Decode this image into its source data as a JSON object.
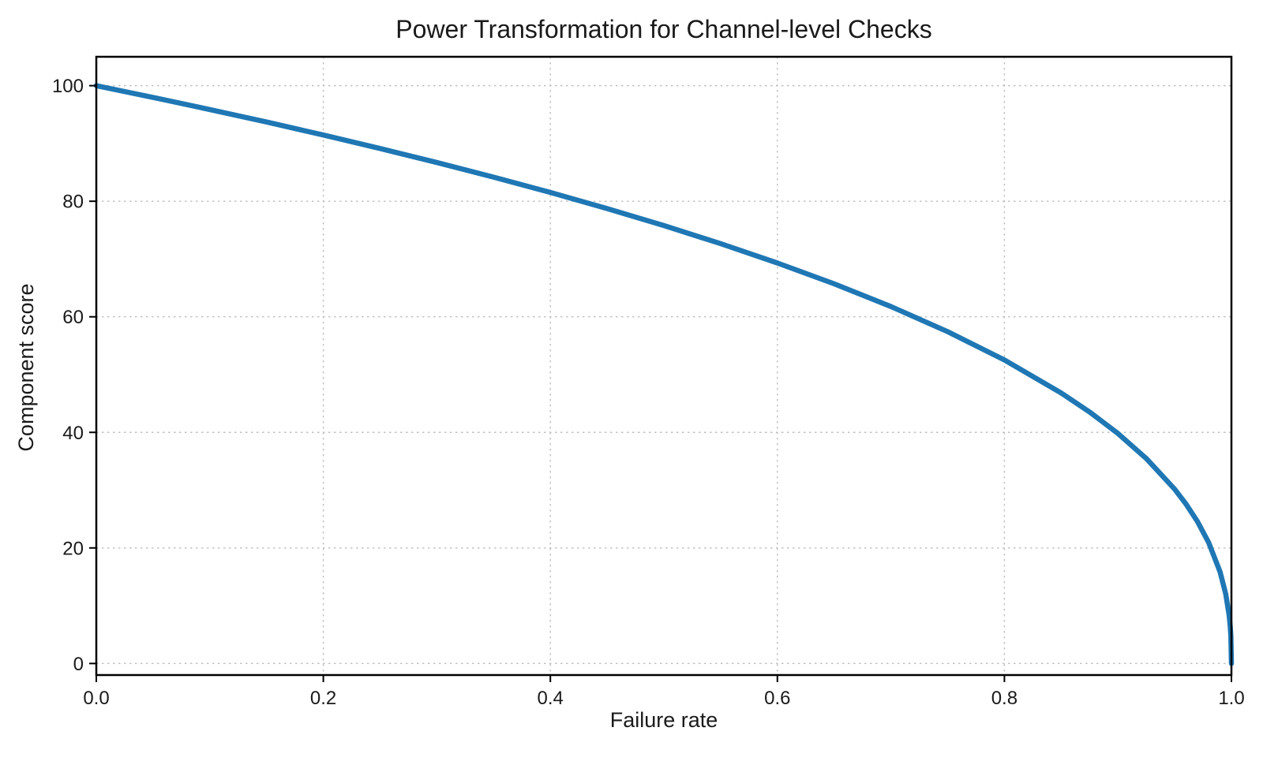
{
  "page": {
    "background": "#ffffff"
  },
  "chart_data": {
    "type": "line",
    "title": "Power Transformation for Channel-level Checks",
    "xlabel": "Failure rate",
    "ylabel": "Component score",
    "xlim": [
      0.0,
      1.0
    ],
    "ylim": [
      0,
      100
    ],
    "display_xlim": [
      0.0,
      1.0
    ],
    "display_ylim": [
      -2,
      105
    ],
    "x_ticks": [
      0.0,
      0.2,
      0.4,
      0.6,
      0.8,
      1.0
    ],
    "x_tick_labels": [
      "0.0",
      "0.2",
      "0.4",
      "0.6",
      "0.8",
      "1.0"
    ],
    "y_ticks": [
      0,
      20,
      40,
      60,
      80,
      100
    ],
    "y_tick_labels": [
      "0",
      "20",
      "40",
      "60",
      "80",
      "100"
    ],
    "grid": "dotted",
    "grid_color": "#bfbfbf",
    "axis_color": "#000000",
    "text_color": "#1a1a1a",
    "legend": "none",
    "series": [
      {
        "name": "component-score-curve",
        "color": "#1f77b4",
        "line_width": 6.5,
        "formula": "y = 100 * (1 - x)^0.4",
        "points": [
          [
            0.0,
            100.0
          ],
          [
            0.05,
            97.97
          ],
          [
            0.1,
            95.87
          ],
          [
            0.15,
            93.71
          ],
          [
            0.2,
            91.46
          ],
          [
            0.25,
            89.13
          ],
          [
            0.3,
            86.7
          ],
          [
            0.35,
            84.17
          ],
          [
            0.4,
            81.52
          ],
          [
            0.45,
            78.73
          ],
          [
            0.5,
            75.79
          ],
          [
            0.55,
            72.66
          ],
          [
            0.6,
            69.31
          ],
          [
            0.65,
            65.71
          ],
          [
            0.7,
            61.78
          ],
          [
            0.75,
            57.43
          ],
          [
            0.8,
            52.53
          ],
          [
            0.85,
            46.82
          ],
          [
            0.875,
            43.53
          ],
          [
            0.9,
            39.81
          ],
          [
            0.925,
            35.48
          ],
          [
            0.95,
            30.17
          ],
          [
            0.96,
            27.59
          ],
          [
            0.97,
            24.6
          ],
          [
            0.98,
            20.91
          ],
          [
            0.99,
            15.85
          ],
          [
            0.995,
            12.01
          ],
          [
            0.998,
            8.33
          ],
          [
            0.999,
            6.31
          ],
          [
            0.9995,
            4.78
          ],
          [
            1.0,
            0.0
          ]
        ]
      }
    ]
  }
}
